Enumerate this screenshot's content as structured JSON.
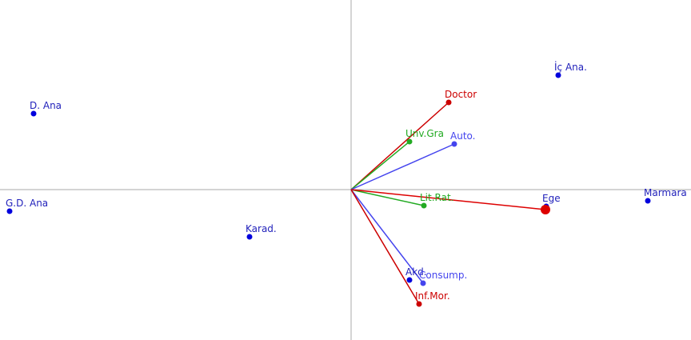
{
  "chart_data": {
    "type": "biplot",
    "xlim": [
      -4.39,
      4.25
    ],
    "ylim": [
      -1.88,
      2.37
    ],
    "points": [
      {
        "label": "İç Ana.",
        "x": 2.59,
        "y": 1.43,
        "color": "#0000dd"
      },
      {
        "label": "D. Ana",
        "x": -3.97,
        "y": 0.95,
        "color": "#0000dd"
      },
      {
        "label": "G.D. Ana",
        "x": -4.27,
        "y": -0.27,
        "color": "#0000dd"
      },
      {
        "label": "Karad.",
        "x": -1.27,
        "y": -0.59,
        "color": "#0000dd"
      },
      {
        "label": "Ege",
        "x": 2.44,
        "y": -0.21,
        "color": "#0000dd"
      },
      {
        "label": "Marmara",
        "x": 3.71,
        "y": -0.14,
        "color": "#0000dd"
      },
      {
        "label": "Akd.",
        "x": 0.73,
        "y": -1.13,
        "color": "#0000dd"
      }
    ],
    "vectors": [
      {
        "label": "Doctor",
        "x": 1.22,
        "y": 1.09,
        "color": "#cc0000"
      },
      {
        "label": "Unv.Gra",
        "x": 0.73,
        "y": 0.6,
        "color": "#22aa22"
      },
      {
        "label": "Auto.",
        "x": 1.29,
        "y": 0.57,
        "color": "#4444ee"
      },
      {
        "label": "Lit.Rat.",
        "x": 0.91,
        "y": -0.2,
        "color": "#22aa22"
      },
      {
        "label": null,
        "x": 2.43,
        "y": -0.25,
        "color": "#dd0000"
      },
      {
        "label": "Consump.",
        "x": 0.9,
        "y": -1.17,
        "color": "#4444ee"
      },
      {
        "label": "Inf.Mor.",
        "x": 0.85,
        "y": -1.43,
        "color": "#cc0000"
      }
    ]
  }
}
